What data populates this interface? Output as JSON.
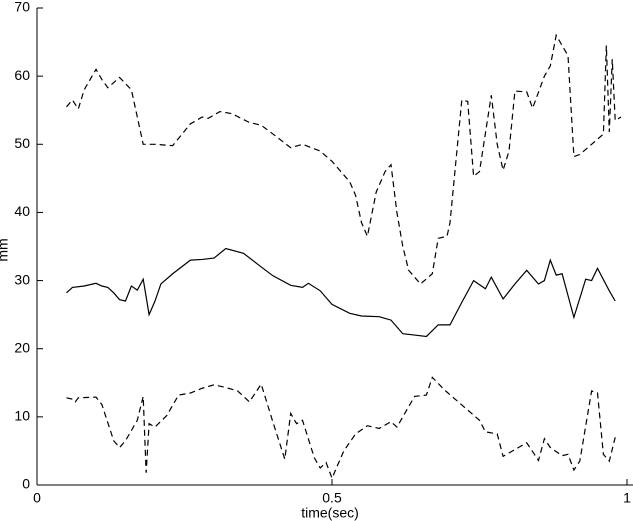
{
  "chart_data": {
    "type": "line",
    "xlabel": "time(sec)",
    "ylabel": "mm",
    "xlim": [
      0,
      1
    ],
    "ylim": [
      0,
      70
    ],
    "xticks": [
      0,
      0.5,
      1
    ],
    "yticks": [
      0,
      10,
      20,
      30,
      40,
      50,
      60,
      70
    ],
    "grid": false,
    "series": [
      {
        "color": "#000000",
        "linestyle": "dashed",
        "x": [
          0.05,
          0.06,
          0.07,
          0.08,
          0.1,
          0.11,
          0.12,
          0.14,
          0.16,
          0.18,
          0.2,
          0.23,
          0.26,
          0.28,
          0.29,
          0.31,
          0.33,
          0.36,
          0.38,
          0.4,
          0.43,
          0.45,
          0.48,
          0.5,
          0.53,
          0.54,
          0.55,
          0.56,
          0.575,
          0.59,
          0.6,
          0.61,
          0.62,
          0.63,
          0.65,
          0.67,
          0.68,
          0.695,
          0.7,
          0.72,
          0.73,
          0.74,
          0.75,
          0.77,
          0.78,
          0.79,
          0.8,
          0.81,
          0.83,
          0.84,
          0.86,
          0.87,
          0.88,
          0.89,
          0.9,
          0.91,
          0.92,
          0.94,
          0.96,
          0.965,
          0.97,
          0.975,
          0.98,
          0.99
        ],
        "values": [
          55.5,
          56.5,
          55.2,
          58,
          61,
          59.5,
          58.3,
          59.8,
          58,
          50,
          50,
          49.8,
          53,
          54,
          53.8,
          54.8,
          54.5,
          53.2,
          52.8,
          51.5,
          49.5,
          50,
          49,
          47.5,
          44.5,
          42.5,
          38.5,
          36.5,
          43,
          46,
          47,
          40,
          35,
          31.5,
          29.5,
          31,
          36.2,
          36.5,
          38.5,
          56.5,
          56.3,
          45.3,
          46,
          57.2,
          50,
          46.2,
          49,
          57.8,
          57.7,
          55.3,
          60,
          61.5,
          66,
          64.5,
          63,
          48.2,
          48.5,
          50,
          51.5,
          64.5,
          51.8,
          62.5,
          53.5,
          54
        ]
      },
      {
        "color": "#000000",
        "linestyle": "solid",
        "x": [
          0.05,
          0.06,
          0.08,
          0.1,
          0.11,
          0.12,
          0.13,
          0.14,
          0.15,
          0.16,
          0.17,
          0.18,
          0.19,
          0.2,
          0.21,
          0.23,
          0.26,
          0.28,
          0.3,
          0.32,
          0.35,
          0.38,
          0.4,
          0.43,
          0.45,
          0.46,
          0.48,
          0.5,
          0.53,
          0.55,
          0.58,
          0.6,
          0.62,
          0.64,
          0.66,
          0.68,
          0.7,
          0.72,
          0.74,
          0.76,
          0.77,
          0.79,
          0.81,
          0.83,
          0.85,
          0.86,
          0.87,
          0.88,
          0.89,
          0.91,
          0.93,
          0.94,
          0.95,
          0.97,
          0.98
        ],
        "values": [
          28.2,
          29,
          29.2,
          29.6,
          29.2,
          29,
          28.2,
          27.2,
          27,
          29.2,
          28.6,
          30.2,
          25,
          27,
          29.5,
          31,
          33,
          33.1,
          33.3,
          34.7,
          34,
          32,
          30.7,
          29.3,
          29,
          29.6,
          28.5,
          26.5,
          25.2,
          24.8,
          24.7,
          24.2,
          22.2,
          22,
          21.8,
          23.5,
          23.5,
          26.8,
          30,
          28.8,
          30.5,
          27.3,
          29.5,
          31.5,
          29.5,
          30,
          33,
          30.8,
          31,
          24.6,
          30.2,
          30,
          31.8,
          28.5,
          27
        ]
      },
      {
        "color": "#000000",
        "linestyle": "dashed",
        "x": [
          0.05,
          0.06,
          0.065,
          0.07,
          0.1,
          0.11,
          0.13,
          0.14,
          0.15,
          0.16,
          0.17,
          0.18,
          0.185,
          0.19,
          0.2,
          0.22,
          0.24,
          0.26,
          0.28,
          0.3,
          0.32,
          0.34,
          0.36,
          0.38,
          0.4,
          0.41,
          0.42,
          0.43,
          0.44,
          0.45,
          0.47,
          0.48,
          0.49,
          0.5,
          0.52,
          0.54,
          0.56,
          0.58,
          0.6,
          0.61,
          0.62,
          0.64,
          0.66,
          0.67,
          0.69,
          0.71,
          0.73,
          0.75,
          0.76,
          0.78,
          0.79,
          0.81,
          0.83,
          0.85,
          0.86,
          0.87,
          0.89,
          0.9,
          0.91,
          0.92,
          0.94,
          0.95,
          0.96,
          0.97,
          0.98
        ],
        "values": [
          12.8,
          12.6,
          12.2,
          12.8,
          12.9,
          11.8,
          6.5,
          5.5,
          6.5,
          8,
          9.5,
          13,
          1.8,
          9,
          8.5,
          10.2,
          13.2,
          13.5,
          14.2,
          14.7,
          14.3,
          13.8,
          12.2,
          14.8,
          9.2,
          6.5,
          3.8,
          10.5,
          9,
          9.5,
          4,
          2.5,
          3.3,
          1,
          5,
          7.5,
          8.7,
          8.3,
          9.3,
          8.5,
          10,
          13,
          13.2,
          15.8,
          14,
          12.5,
          11,
          9.5,
          7.8,
          7.5,
          4.2,
          5.2,
          6.2,
          3.6,
          6.8,
          5.5,
          4.3,
          4.5,
          2.2,
          3.5,
          13.8,
          13.5,
          4.5,
          3.5,
          7
        ]
      }
    ]
  }
}
